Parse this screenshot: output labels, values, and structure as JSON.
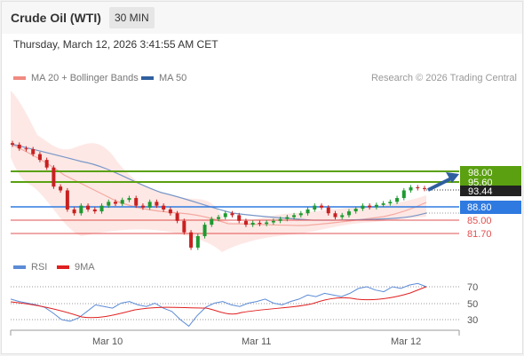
{
  "header": {
    "title": "Crude Oil (WTI)",
    "timeframe": "30 MIN"
  },
  "datetime": "Thursday, March 12, 2026 3:41:55 AM CET",
  "legend": {
    "ma20": {
      "label": "MA 20 + Bollinger Bands",
      "color": "#f08a80"
    },
    "ma50": {
      "label": "MA 50",
      "color": "#2f5f9e"
    },
    "rsi": {
      "label": "RSI",
      "color": "#5b8bd6"
    },
    "ma9": {
      "label": "9MA",
      "color": "#e02020"
    }
  },
  "attribution": "Research © 2026 Trading Central",
  "colors": {
    "resistance": "#5aa010",
    "pivot": "#2f7ae0",
    "support": "#e25050",
    "up_candle": "#1e9a30",
    "down_candle": "#c82020",
    "current": "#222222"
  },
  "levels": {
    "resistance_2": "98.00",
    "resistance_1": "95.60",
    "current_price": "93.44",
    "pivot": "88.80",
    "support_1": "85.00",
    "support_2": "81.70"
  },
  "rsi_axis": [
    "70",
    "50",
    "30"
  ],
  "x_axis": [
    "Mar 10",
    "Mar 11",
    "Mar 12"
  ],
  "chart_data": [
    {
      "type": "line",
      "title": "",
      "y_levels": {
        "resistance": [
          98.0,
          95.6
        ],
        "pivot": 88.8,
        "support": [
          85.0,
          81.7
        ],
        "last": 93.44
      },
      "x_ticks": [
        "Mar 10",
        "Mar 11",
        "Mar 12"
      ],
      "series": [
        {
          "name": "MA 20 + Bollinger Bands"
        },
        {
          "name": "MA 50"
        }
      ],
      "close": [
        105,
        104,
        103.8,
        102.5,
        101,
        99,
        94,
        93,
        88,
        87,
        89,
        88,
        87.5,
        89,
        90,
        89.5,
        90.5,
        91,
        89,
        88.5,
        90,
        89,
        88,
        87,
        85,
        82,
        78,
        81,
        84,
        85.5,
        86,
        87,
        86.5,
        85,
        84,
        84.5,
        84.2,
        84.6,
        85,
        85.5,
        86,
        86.5,
        87,
        88,
        89,
        88.5,
        87,
        86,
        86.5,
        87.5,
        88.2,
        89,
        88.6,
        89.2,
        89.6,
        90,
        91,
        93,
        93.8,
        93.6,
        93.4
      ],
      "grid": false,
      "legend_position": "top-left"
    },
    {
      "type": "line",
      "y_ticks": [
        70,
        50,
        30
      ],
      "ylim": [
        20,
        80
      ],
      "series": [
        {
          "name": "RSI"
        },
        {
          "name": "9MA"
        }
      ],
      "rsi": [
        55,
        52,
        50,
        48,
        45,
        38,
        30,
        28,
        32,
        40,
        48,
        46,
        44,
        50,
        52,
        48,
        46,
        50,
        44,
        40,
        30,
        22,
        35,
        45,
        50,
        52,
        48,
        46,
        50,
        52,
        55,
        50,
        48,
        52,
        55,
        60,
        58,
        62,
        60,
        58,
        62,
        68,
        70,
        66,
        64,
        70,
        68,
        72,
        74,
        70
      ],
      "grid": true,
      "legend_position": "top-left"
    }
  ]
}
